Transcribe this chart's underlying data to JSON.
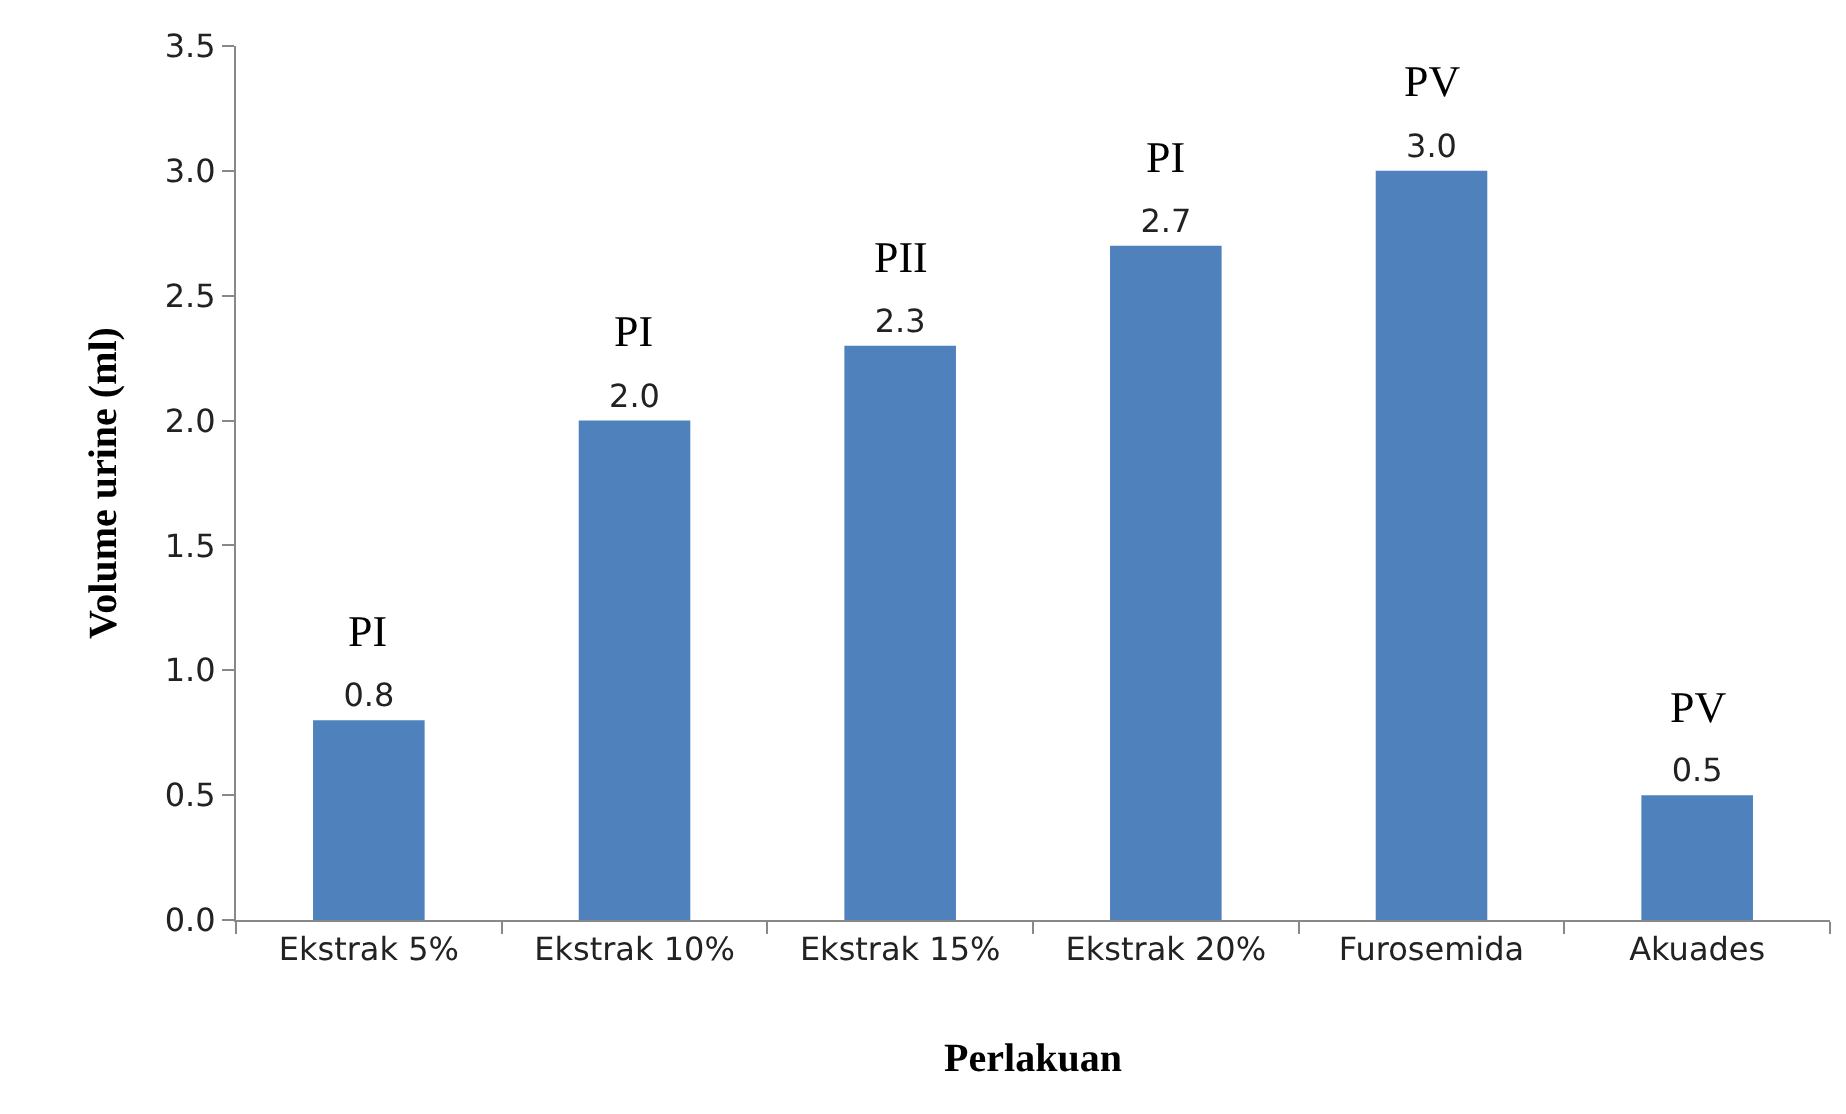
{
  "chart_data": {
    "type": "bar",
    "xlabel": "Perlakuan",
    "ylabel": "Volume urine (ml)",
    "categories": [
      "Ekstrak 5%",
      "Ekstrak 10%",
      "Ekstrak 15%",
      "Ekstrak 20%",
      "Furosemida",
      "Akuades"
    ],
    "values": [
      0.8,
      2.0,
      2.3,
      2.7,
      3.0,
      0.5
    ],
    "value_labels": [
      "0.8",
      "2.0",
      "2.3",
      "2.7",
      "3.0",
      "0.5"
    ],
    "color": "#4f81bd",
    "ylim": [
      0,
      3.5
    ],
    "yticks": [
      {
        "value": 0,
        "label": "0.0"
      },
      {
        "value": 0.5,
        "label": "0.5"
      },
      {
        "value": 1,
        "label": "1.0"
      },
      {
        "value": 1.5,
        "label": "1.5"
      },
      {
        "value": 2,
        "label": "2.0"
      },
      {
        "value": 2.5,
        "label": "2.5"
      },
      {
        "value": 3,
        "label": "3.0"
      },
      {
        "value": 3.5,
        "label": "3.5"
      }
    ],
    "grid": false,
    "legend": false,
    "annotations": [
      {
        "text": "PI",
        "x": "Ekstrak 5%",
        "y": 0.8
      },
      {
        "text": "PI",
        "x": "Ekstrak 10%",
        "y": 2.0
      },
      {
        "text": "PII",
        "x": "Ekstrak 15%",
        "y": 2.3
      },
      {
        "text": "PI",
        "x": "Ekstrak 20%",
        "y": 2.7
      },
      {
        "text": "PV",
        "x": "Furosemida",
        "y": 3.0
      },
      {
        "text": "PV",
        "x": "Akuades",
        "y": 0.5
      }
    ]
  }
}
